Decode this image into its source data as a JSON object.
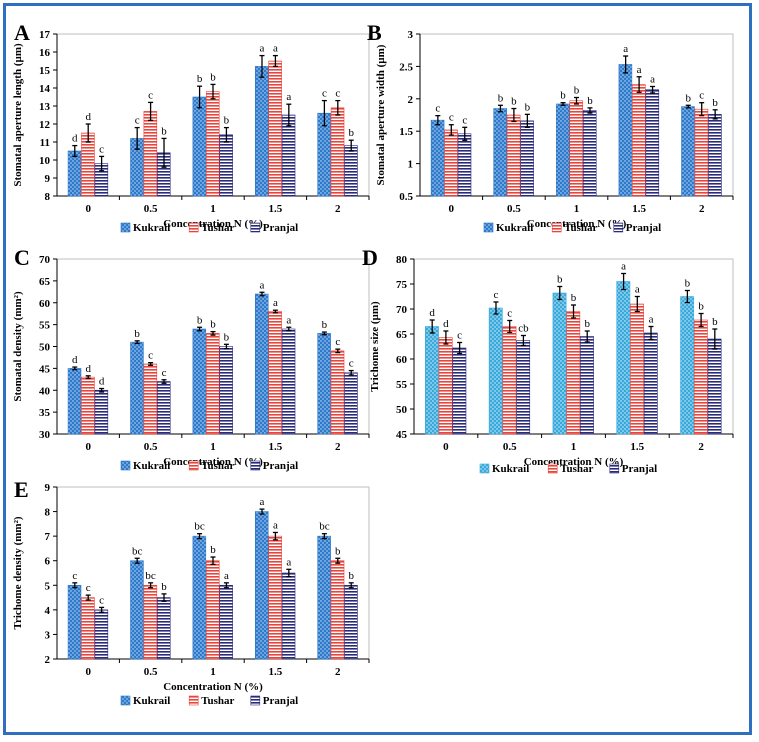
{
  "colors": {
    "frame": "#2f6fc0",
    "kukrail": "#2e79c9",
    "kukrail_alt": "#39a9dc",
    "tushar": "#e8453c",
    "pranjal": "#2a2a7a"
  },
  "chart_data": [
    {
      "id": "A",
      "panel_label": "A",
      "type": "bar",
      "categories": [
        "0",
        "0.5",
        "1",
        "1.5",
        "2"
      ],
      "xlabel": "Concentration N (%)",
      "ylabel": "Stomatal aperture length (µm)",
      "ylim": [
        8,
        17
      ],
      "yticks": [
        8,
        9,
        10,
        11,
        12,
        13,
        14,
        15,
        16,
        17
      ],
      "series": [
        {
          "name": "Kukrail",
          "values": [
            10.5,
            11.2,
            13.5,
            15.2,
            12.6
          ],
          "errors": [
            0.3,
            0.6,
            0.6,
            0.6,
            0.7
          ],
          "letters": [
            "d",
            "c",
            "b",
            "a",
            "c"
          ]
        },
        {
          "name": "Tushar",
          "values": [
            11.5,
            12.7,
            13.8,
            15.5,
            12.9
          ],
          "errors": [
            0.5,
            0.5,
            0.4,
            0.3,
            0.4
          ],
          "letters": [
            "d",
            "c",
            "b",
            "a",
            "c"
          ]
        },
        {
          "name": "Pranjal",
          "values": [
            9.8,
            10.4,
            11.4,
            12.5,
            10.8
          ],
          "errors": [
            0.4,
            0.8,
            0.4,
            0.6,
            0.3
          ],
          "letters": [
            "c",
            "b",
            "b",
            "a",
            "b"
          ]
        }
      ]
    },
    {
      "id": "B",
      "panel_label": "B",
      "type": "bar",
      "categories": [
        "0",
        "0.5",
        "1",
        "1.5",
        "2"
      ],
      "xlabel": "Concentration N (%)",
      "ylabel": "Stomatal aperture width (µm)",
      "ylim": [
        0.5,
        3
      ],
      "yticks": [
        0.5,
        1,
        1.5,
        2,
        2.5,
        3
      ],
      "series": [
        {
          "name": "Kukrail",
          "values": [
            1.67,
            1.85,
            1.92,
            2.53,
            1.88
          ],
          "errors": [
            0.07,
            0.05,
            0.02,
            0.13,
            0.02
          ],
          "letters": [
            "c",
            "b",
            "b",
            "a",
            "b"
          ]
        },
        {
          "name": "Tushar",
          "values": [
            1.52,
            1.75,
            1.97,
            2.22,
            1.84
          ],
          "errors": [
            0.08,
            0.1,
            0.05,
            0.12,
            0.1
          ],
          "letters": [
            "c",
            "b",
            "b",
            "a",
            "c"
          ]
        },
        {
          "name": "Pranjal",
          "values": [
            1.46,
            1.66,
            1.82,
            2.14,
            1.76
          ],
          "errors": [
            0.1,
            0.1,
            0.04,
            0.05,
            0.07
          ],
          "letters": [
            "c",
            "b",
            "b",
            "a",
            "b"
          ]
        }
      ]
    },
    {
      "id": "C",
      "panel_label": "C",
      "type": "bar",
      "categories": [
        "0",
        "0.5",
        "1",
        "1.5",
        "2"
      ],
      "xlabel": "Concentration N (%)",
      "ylabel": "Stomatal density (mm²)",
      "ylim": [
        30,
        70
      ],
      "yticks": [
        30,
        35,
        40,
        45,
        50,
        55,
        60,
        65,
        70
      ],
      "series": [
        {
          "name": "Kukrail",
          "values": [
            45,
            51,
            54,
            62,
            53
          ],
          "errors": [
            0.3,
            0.3,
            0.4,
            0.4,
            0.3
          ],
          "letters": [
            "d",
            "b",
            "b",
            "a",
            "b"
          ]
        },
        {
          "name": "Tushar",
          "values": [
            43,
            46,
            53,
            58,
            49
          ],
          "errors": [
            0.3,
            0.3,
            0.4,
            0.3,
            0.4
          ],
          "letters": [
            "d",
            "c",
            "b",
            "a",
            "c"
          ]
        },
        {
          "name": "Pranjal",
          "values": [
            40,
            42,
            50,
            54,
            44
          ],
          "errors": [
            0.4,
            0.4,
            0.5,
            0.4,
            0.5
          ],
          "letters": [
            "d",
            "c",
            "b",
            "a",
            "c"
          ]
        }
      ]
    },
    {
      "id": "D",
      "panel_label": "D",
      "type": "bar",
      "categories": [
        "0",
        "0.5",
        "1",
        "1.5",
        "2"
      ],
      "xlabel": "Concentration N (%)",
      "ylabel": "Trichome size (µm)",
      "ylim": [
        45,
        80
      ],
      "yticks": [
        45,
        50,
        55,
        60,
        65,
        70,
        75,
        80
      ],
      "series": [
        {
          "name": "Kukrail",
          "values": [
            66.5,
            70.2,
            73.2,
            75.5,
            72.5
          ],
          "errors": [
            1.3,
            1.2,
            1.3,
            1.6,
            1.2
          ],
          "letters": [
            "d",
            "c",
            "b",
            "a",
            "b"
          ]
        },
        {
          "name": "Tushar",
          "values": [
            64.3,
            66.5,
            69.5,
            71.0,
            67.8
          ],
          "errors": [
            1.3,
            1.2,
            1.3,
            1.5,
            1.3
          ],
          "letters": [
            "d",
            "c",
            "b",
            "a",
            "b"
          ]
        },
        {
          "name": "Pranjal",
          "values": [
            62.2,
            63.7,
            64.5,
            65.2,
            64.0
          ],
          "errors": [
            1.1,
            1.0,
            1.1,
            1.3,
            2.0
          ],
          "letters": [
            "c",
            "cb",
            "b",
            "a",
            "b"
          ]
        }
      ]
    },
    {
      "id": "E",
      "panel_label": "E",
      "type": "bar",
      "categories": [
        "0",
        "0.5",
        "1",
        "1.5",
        "2"
      ],
      "xlabel": "Concentration N (%)",
      "ylabel": "Trichome density (mm²)",
      "ylim": [
        2,
        9
      ],
      "yticks": [
        2,
        3,
        4,
        5,
        6,
        7,
        8,
        9
      ],
      "series": [
        {
          "name": "Kukrail",
          "values": [
            5.0,
            6.0,
            7.0,
            8.0,
            7.0
          ],
          "errors": [
            0.1,
            0.1,
            0.1,
            0.1,
            0.1
          ],
          "letters": [
            "c",
            "bc",
            "bc",
            "a",
            "bc"
          ]
        },
        {
          "name": "Tushar",
          "values": [
            4.5,
            5.0,
            6.0,
            7.0,
            6.0
          ],
          "errors": [
            0.1,
            0.1,
            0.15,
            0.15,
            0.1
          ],
          "letters": [
            "c",
            "bc",
            "b",
            "a",
            "b"
          ]
        },
        {
          "name": "Pranjal",
          "values": [
            4.0,
            4.5,
            5.0,
            5.5,
            5.0
          ],
          "errors": [
            0.1,
            0.15,
            0.1,
            0.15,
            0.1
          ],
          "letters": [
            "c",
            "b",
            "a",
            "a",
            "b"
          ]
        }
      ]
    }
  ]
}
